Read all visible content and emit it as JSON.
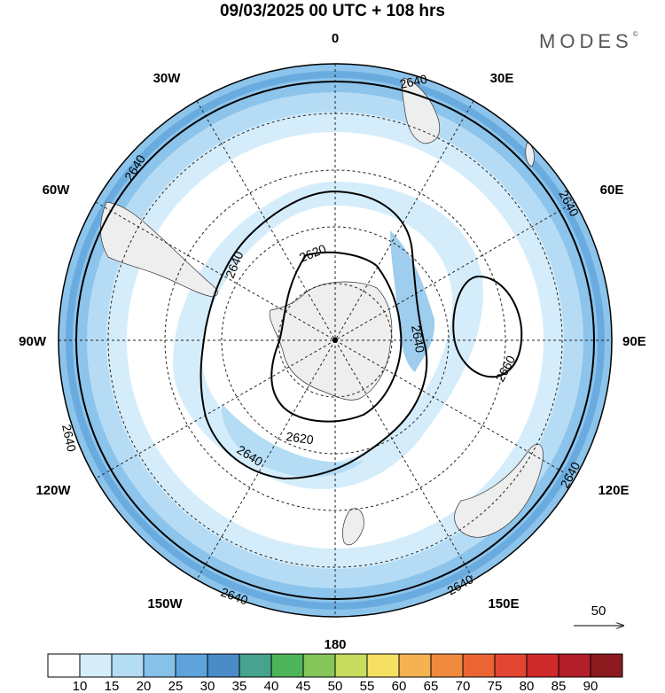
{
  "title": "09/03/2025  00 UTC  + 108 hrs",
  "logo": "MODES",
  "logo_mark": "©",
  "longitude_labels": {
    "top": "0",
    "bottom": "180",
    "left": "90W",
    "right": "90E",
    "l30": "30W",
    "l60": "60W",
    "l120": "120W",
    "l150": "150W",
    "r30": "30E",
    "r60": "60E",
    "r120": "120E",
    "r150": "150E"
  },
  "contour_labels": {
    "c2620": "2620",
    "c2640": "2640",
    "c2660": "2660"
  },
  "vector_reference": "50",
  "colorbar": {
    "colors": [
      "#ffffff",
      "#d6eefb",
      "#b4dcf5",
      "#86c1ea",
      "#5ea3dc",
      "#4a8cc8",
      "#45a38e",
      "#4db45a",
      "#86c55a",
      "#c8dc5e",
      "#f6e063",
      "#f5b250",
      "#f08a3e",
      "#ea6434",
      "#e24632",
      "#cf2a2a",
      "#b41e28",
      "#8b1a1e"
    ],
    "ticks": [
      "10",
      "15",
      "20",
      "25",
      "30",
      "35",
      "40",
      "45",
      "50",
      "55",
      "60",
      "65",
      "70",
      "75",
      "80",
      "85",
      "90"
    ]
  },
  "map_style": {
    "land_color": "#eeeeee",
    "ring_colors": [
      "#5fa2da",
      "#8cc4eb",
      "#b6dcf5",
      "#d5edfb"
    ]
  }
}
